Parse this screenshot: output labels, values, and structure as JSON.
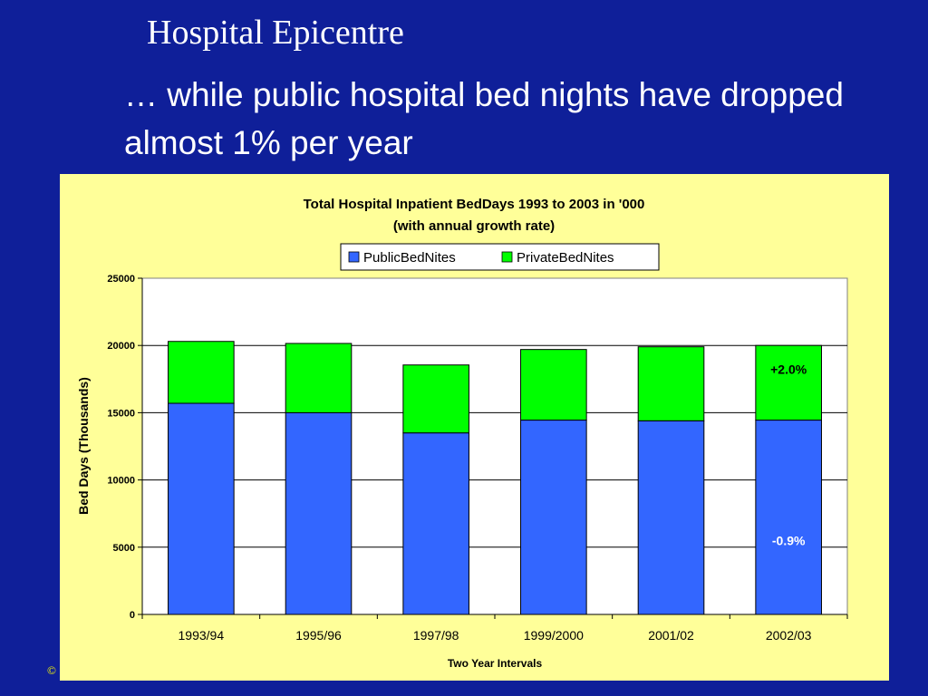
{
  "slide": {
    "title": "Hospital Epicentre",
    "subtitle": "… while public hospital bed nights have dropped almost 1% per year",
    "footer_mark": "©"
  },
  "colors": {
    "background": "#0f1f99",
    "chart_panel": "#ffff99",
    "public": "#3366ff",
    "private": "#00ff00"
  },
  "chart_data": {
    "type": "bar",
    "stacked": true,
    "title": "Total Hospital Inpatient BedDays 1993 to 2003 in '000",
    "subtitle": "(with annual growth rate)",
    "xlabel": "Two Year Intervals",
    "ylabel": "Bed Days (Thousands)",
    "ylim": [
      0,
      25000
    ],
    "yticks": [
      "0",
      "5000",
      "10000",
      "15000",
      "20000",
      "25000"
    ],
    "grid": true,
    "legend_position": "top-center",
    "categories": [
      "1993/94",
      "1995/96",
      "1997/98",
      "1999/2000",
      "2001/02",
      "2002/03"
    ],
    "series": [
      {
        "name": "PublicBedNites",
        "color": "#3366ff",
        "values": [
          15700,
          15000,
          13500,
          14450,
          14400,
          14450
        ]
      },
      {
        "name": "PrivateBedNites",
        "color": "#00ff00",
        "values": [
          4600,
          5150,
          5050,
          5250,
          5500,
          5550
        ]
      }
    ],
    "annotations": [
      {
        "text": "+2.0%",
        "series": "PrivateBedNites",
        "category": "2002/03",
        "color": "#000000"
      },
      {
        "text": "-0.9%",
        "series": "PublicBedNites",
        "category": "2002/03",
        "color": "#ffffff"
      }
    ]
  }
}
